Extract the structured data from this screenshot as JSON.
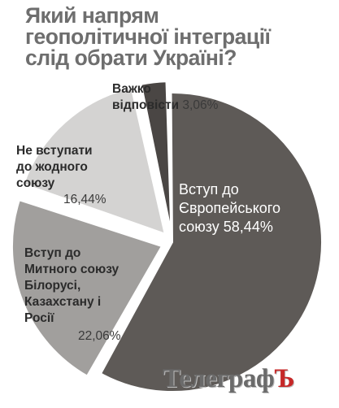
{
  "title_lines": [
    "Який напрям",
    "геополітичної інтеграції",
    "слід обрати Україні?"
  ],
  "chart_data": {
    "type": "pie",
    "title": "Який напрям геополітичної інтеграції слід обрати Україні?",
    "slices": [
      {
        "label": "Вступ до Європейського союзу",
        "value": 58.44,
        "display": "58,44%",
        "color": "#5e5a57"
      },
      {
        "label": "Вступ до Митного союзу Білорусі, Казахстану і Росії",
        "value": 22.06,
        "display": "22,06%",
        "color": "#a19f9d"
      },
      {
        "label": "Не вступати до жодного союзу",
        "value": 16.44,
        "display": "16,44%",
        "color": "#d4d3d2"
      },
      {
        "label": "Важко відповісти",
        "value": 3.06,
        "display": "3,06%",
        "color": "#4a4644"
      }
    ]
  },
  "labels": {
    "eu_lines": [
      "Вступ до",
      "Європейського",
      "союзу"
    ],
    "customs_lines": [
      "Вступ до",
      "Митного союзу",
      "Білорусі,",
      "Казахстану і",
      "Росії"
    ],
    "none_lines": [
      "Не вступати",
      "до жодного",
      "союзу"
    ],
    "hard_lines": [
      "Важко",
      "відповісти"
    ]
  },
  "logo": {
    "main": "Телеграф",
    "last": "Ъ"
  }
}
